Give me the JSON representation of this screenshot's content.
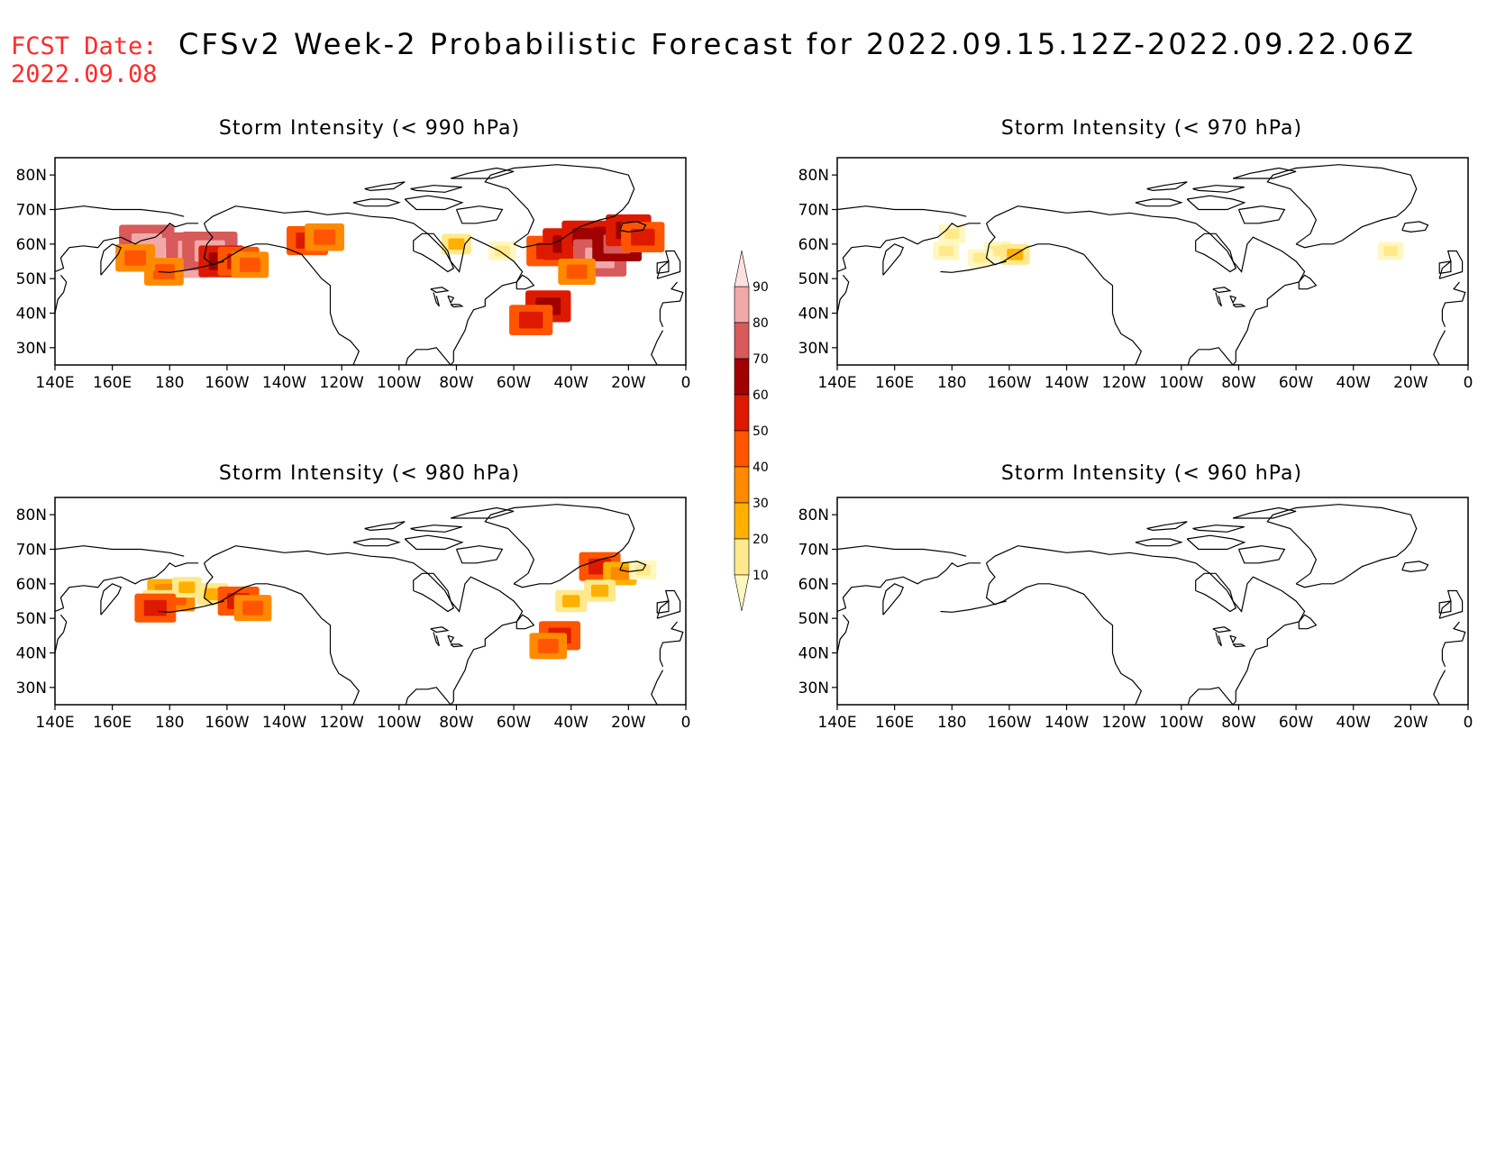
{
  "header": {
    "fcst_label": "FCST Date:",
    "fcst_date": "2022.09.08",
    "title": "CFSv2 Week-2 Probabilistic Forecast for 2022.09.15.12Z-2022.09.22.06Z"
  },
  "axes": {
    "lon_ticks": [
      "140E",
      "160E",
      "180",
      "160W",
      "140W",
      "120W",
      "100W",
      "80W",
      "60W",
      "40W",
      "20W",
      "0"
    ],
    "lat_ticks": [
      "80N",
      "70N",
      "60N",
      "50N",
      "40N",
      "30N"
    ]
  },
  "colorbar": {
    "levels": [
      "10",
      "20",
      "30",
      "40",
      "50",
      "60",
      "70",
      "80",
      "90"
    ],
    "colors": [
      "#fff7bf",
      "#ffe98a",
      "#ffb000",
      "#ff8a00",
      "#ff5500",
      "#dd1a00",
      "#a00000",
      "#d85a5a",
      "#f0a8a8",
      "#fde0e0"
    ]
  },
  "panels": [
    {
      "id": "p990",
      "title": "Storm Intensity (< 990 hPa)"
    },
    {
      "id": "p980",
      "title": "Storm Intensity (< 980 hPa)"
    },
    {
      "id": "p970",
      "title": "Storm Intensity (< 970 hPa)"
    },
    {
      "id": "p960",
      "title": "Storm Intensity (< 960 hPa)"
    }
  ],
  "map_data": {
    "p990": [
      {
        "lon": 180,
        "lat": 56,
        "prob": 55
      },
      {
        "lon": 176,
        "lat": 58,
        "prob": 75
      },
      {
        "lon": 172,
        "lat": 60,
        "prob": 85
      },
      {
        "lon": 184,
        "lat": 56,
        "prob": 90
      },
      {
        "lon": 188,
        "lat": 58,
        "prob": 80
      },
      {
        "lon": 194,
        "lat": 58,
        "prob": 85
      },
      {
        "lon": 198,
        "lat": 55,
        "prob": 60
      },
      {
        "lon": 204,
        "lat": 55,
        "prob": 50
      },
      {
        "lon": 208,
        "lat": 54,
        "prob": 40
      },
      {
        "lon": 178,
        "lat": 52,
        "prob": 45
      },
      {
        "lon": 168,
        "lat": 56,
        "prob": 45
      },
      {
        "lon": 228,
        "lat": 61,
        "prob": 50
      },
      {
        "lon": 234,
        "lat": 62,
        "prob": 45
      },
      {
        "lon": 280,
        "lat": 60,
        "prob": 20
      },
      {
        "lon": 296,
        "lat": 58,
        "prob": 15
      },
      {
        "lon": 312,
        "lat": 58,
        "prob": 55
      },
      {
        "lon": 318,
        "lat": 60,
        "prob": 60
      },
      {
        "lon": 325,
        "lat": 62,
        "prob": 65
      },
      {
        "lon": 330,
        "lat": 56,
        "prob": 80
      },
      {
        "lon": 336,
        "lat": 60,
        "prob": 70
      },
      {
        "lon": 340,
        "lat": 64,
        "prob": 60
      },
      {
        "lon": 345,
        "lat": 62,
        "prob": 55
      },
      {
        "lon": 322,
        "lat": 52,
        "prob": 40
      },
      {
        "lon": 312,
        "lat": 42,
        "prob": 60
      },
      {
        "lon": 306,
        "lat": 38,
        "prob": 55
      }
    ],
    "p980": [
      {
        "lon": 178,
        "lat": 58,
        "prob": 30
      },
      {
        "lon": 182,
        "lat": 56,
        "prob": 45
      },
      {
        "lon": 176,
        "lat": 55,
        "prob": 25
      },
      {
        "lon": 186,
        "lat": 59,
        "prob": 20
      },
      {
        "lon": 195,
        "lat": 57,
        "prob": 25
      },
      {
        "lon": 204,
        "lat": 55,
        "prob": 50
      },
      {
        "lon": 209,
        "lat": 53,
        "prob": 40
      },
      {
        "lon": 175,
        "lat": 53,
        "prob": 50
      },
      {
        "lon": 330,
        "lat": 65,
        "prob": 50
      },
      {
        "lon": 337,
        "lat": 63,
        "prob": 30
      },
      {
        "lon": 345,
        "lat": 64,
        "prob": 15
      },
      {
        "lon": 330,
        "lat": 58,
        "prob": 25
      },
      {
        "lon": 316,
        "lat": 45,
        "prob": 50
      },
      {
        "lon": 312,
        "lat": 42,
        "prob": 40
      },
      {
        "lon": 320,
        "lat": 55,
        "prob": 25
      }
    ],
    "p970": [
      {
        "lon": 180,
        "lat": 63,
        "prob": 12
      },
      {
        "lon": 178,
        "lat": 58,
        "prob": 12
      },
      {
        "lon": 196,
        "lat": 58,
        "prob": 15
      },
      {
        "lon": 202,
        "lat": 57,
        "prob": 20
      },
      {
        "lon": 190,
        "lat": 56,
        "prob": 10
      },
      {
        "lon": 333,
        "lat": 58,
        "prob": 10
      }
    ],
    "p960": []
  }
}
